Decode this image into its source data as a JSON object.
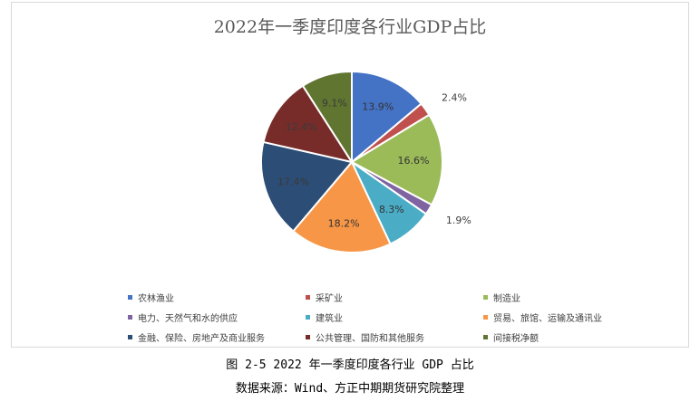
{
  "chart_data": {
    "type": "pie",
    "title": "2022年一季度印度各行业GDP占比",
    "categories": [
      "农林渔业",
      "采矿业",
      "制造业",
      "电力、天然气和水的供应",
      "建筑业",
      "贸易、旅馆、运输及通讯业",
      "金融、保险、房地产及商业服务",
      "公共管理、国防和其他服务",
      "间接税净额"
    ],
    "values": [
      13.9,
      2.4,
      16.6,
      1.9,
      8.3,
      18.2,
      17.4,
      12.4,
      9.1
    ],
    "labels": [
      "13.9%",
      "2.4%",
      "16.6%",
      "1.9%",
      "8.3%",
      "18.2%",
      "17.4%",
      "12.4%",
      "9.1%"
    ],
    "colors": [
      "#4472c4",
      "#c0504d",
      "#9bbb59",
      "#8064a2",
      "#4bacc6",
      "#f79646",
      "#2c4d75",
      "#772c2a",
      "#5f7530"
    ],
    "legend_position": "bottom"
  },
  "caption": {
    "figure": "图 2-5 2022 年一季度印度各行业 GDP 占比",
    "source": "数据来源：Wind、方正中期期货研究院整理"
  }
}
